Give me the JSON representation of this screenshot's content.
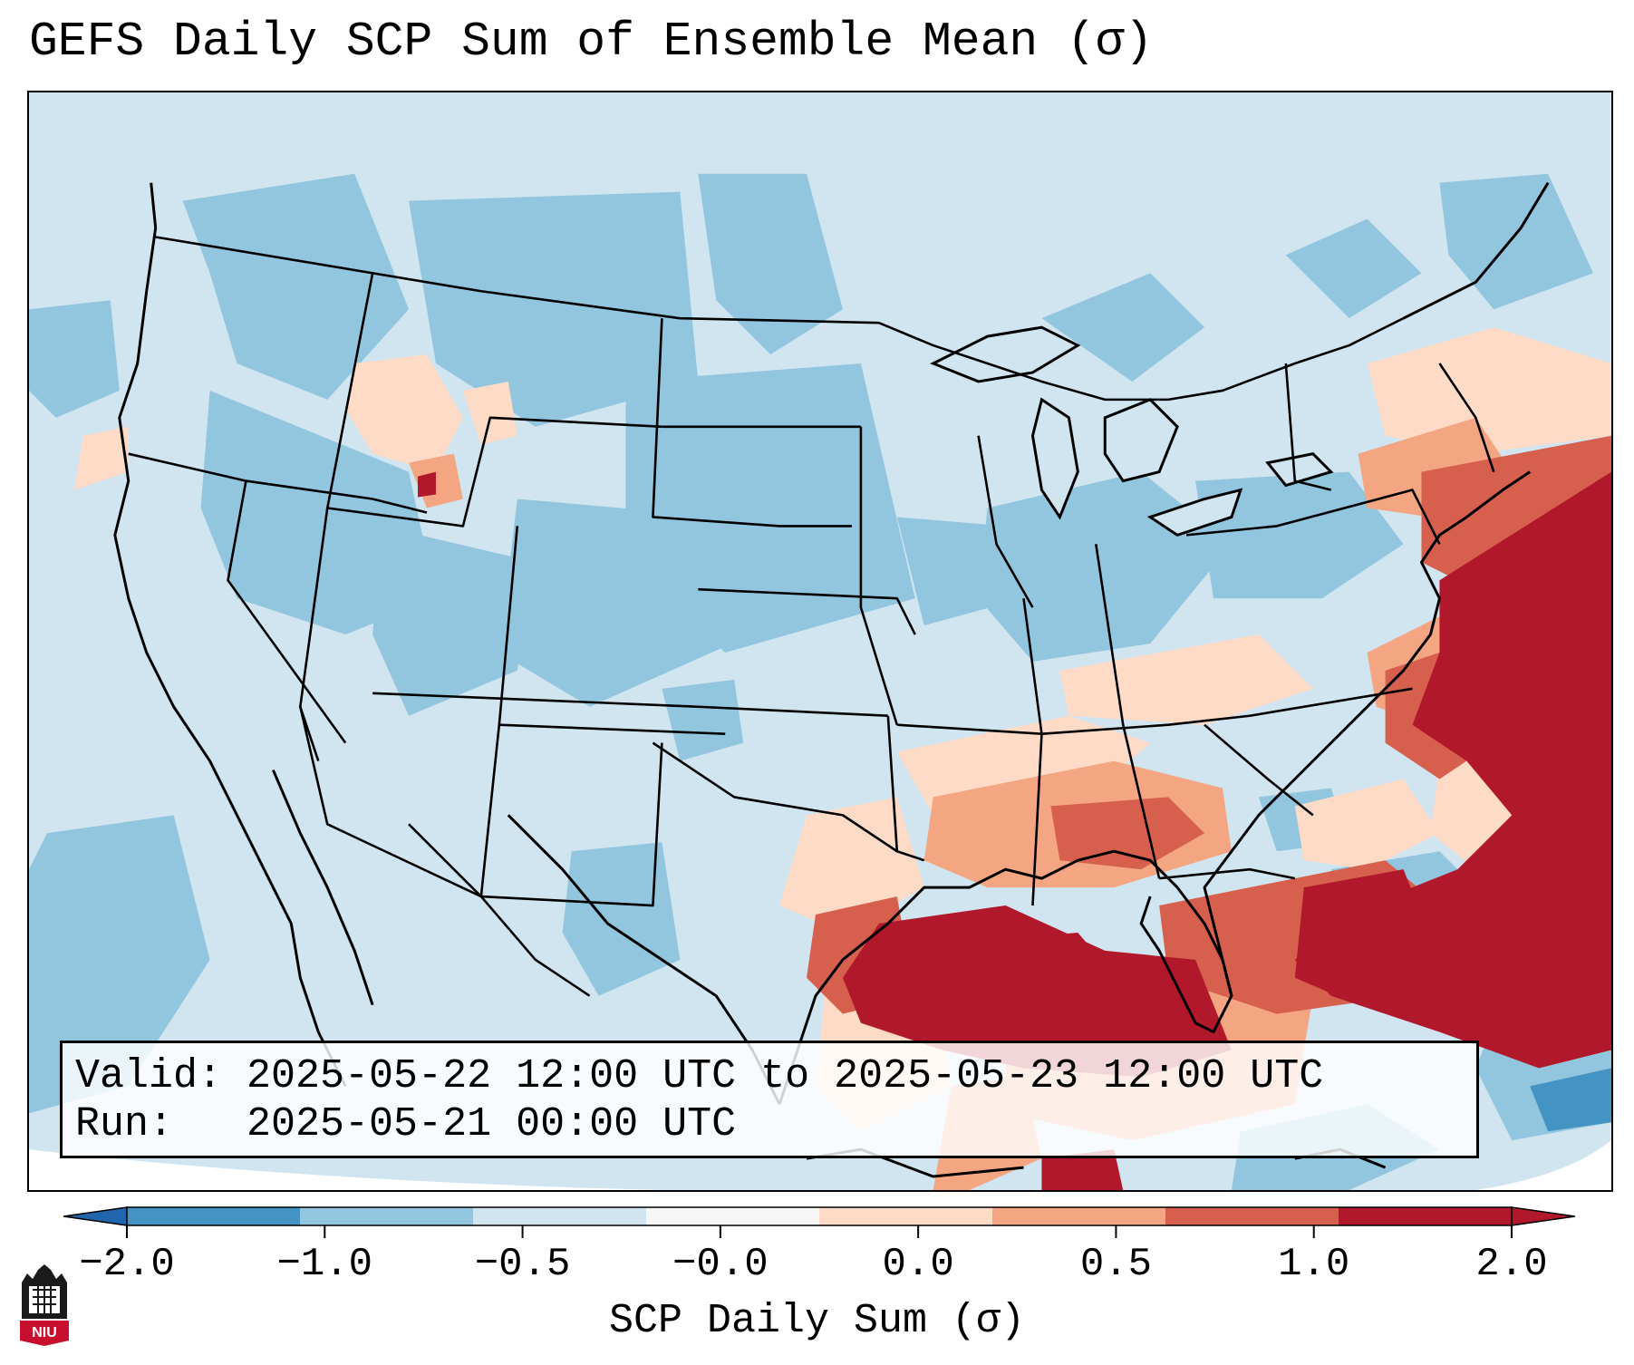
{
  "title": "GEFS Daily SCP Sum of Ensemble Mean (σ)",
  "info": {
    "valid_line": "Valid: 2025-05-22 12:00 UTC to 2025-05-23 12:00 UTC",
    "run_line": "Run:   2025-05-21 00:00 UTC"
  },
  "colorbar": {
    "label": "SCP Daily Sum (σ)",
    "ticks": [
      "−2.0",
      "−1.0",
      "−0.5",
      "−0.0",
      "0.0",
      "0.5",
      "1.0",
      "2.0"
    ],
    "colors": [
      "#4393c3",
      "#92c5de",
      "#d1e5f0",
      "#f7f7f7",
      "#fddbc7",
      "#f4a582",
      "#d6604d",
      "#b2182b"
    ],
    "under_color": "#2166ac",
    "over_color": "#b2182b"
  },
  "logo": {
    "text": "NIU"
  }
}
